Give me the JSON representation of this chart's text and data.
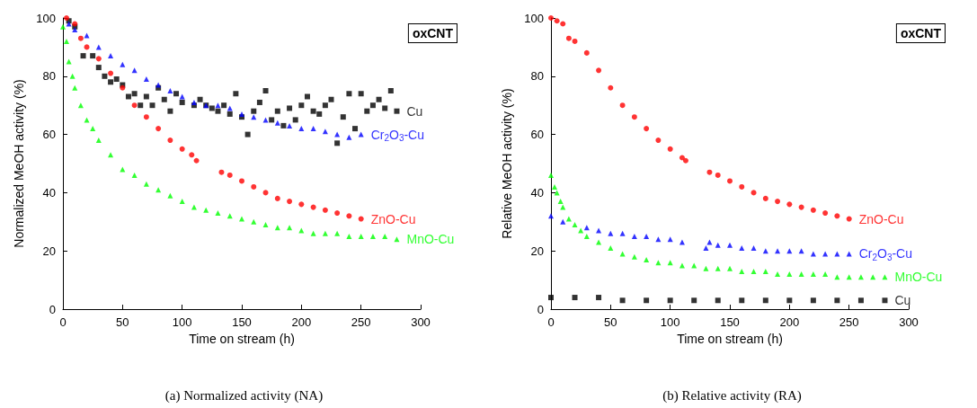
{
  "chart_data": [
    {
      "type": "scatter",
      "title": "(a) Normalized activity (NA)",
      "xlabel": "Time on stream (h)",
      "ylabel": "Normalized MeOH activity (%)",
      "annotations": [
        "oxCNT"
      ],
      "xlim": [
        0,
        300
      ],
      "xticks": [
        0,
        50,
        100,
        150,
        200,
        250,
        300
      ],
      "ylim": [
        0,
        100
      ],
      "yticks": [
        0,
        20,
        40,
        60,
        80,
        100
      ],
      "grid": false,
      "legend": false,
      "series": [
        {
          "name": "Cu",
          "color": "#000000",
          "marker": "square",
          "x": [
            5,
            10,
            17,
            25,
            30,
            35,
            40,
            45,
            50,
            55,
            60,
            65,
            70,
            75,
            80,
            85,
            90,
            95,
            100,
            110,
            115,
            120,
            125,
            130,
            135,
            140,
            145,
            150,
            155,
            160,
            165,
            170,
            175,
            180,
            185,
            190,
            195,
            200,
            205,
            210,
            215,
            220,
            225,
            230,
            235,
            240,
            245,
            250,
            255,
            260,
            265,
            270,
            275,
            280
          ],
          "values": [
            99,
            97,
            87,
            87,
            83,
            80,
            78,
            79,
            77,
            73,
            74,
            70,
            73,
            70,
            76,
            72,
            68,
            74,
            71,
            70,
            72,
            70,
            69,
            68,
            70,
            67,
            74,
            66,
            60,
            68,
            71,
            75,
            65,
            68,
            63,
            69,
            65,
            70,
            73,
            68,
            67,
            70,
            72,
            57,
            66,
            74,
            62,
            74,
            68,
            70,
            72,
            69,
            75,
            68
          ]
        },
        {
          "name": "Cr$_{2}$O$_{3}$-Cu",
          "color": "#0000ff",
          "marker": "triangle",
          "x": [
            5,
            10,
            20,
            30,
            40,
            50,
            60,
            70,
            80,
            90,
            100,
            110,
            120,
            130,
            140,
            150,
            160,
            170,
            180,
            190,
            200,
            210,
            220,
            230,
            240,
            250
          ],
          "values": [
            98,
            96,
            94,
            90,
            87,
            84,
            82,
            79,
            77,
            75,
            73,
            71,
            70,
            70,
            69,
            67,
            66,
            65,
            64,
            63,
            62,
            62,
            61,
            60,
            59,
            60
          ]
        },
        {
          "name": "ZnO-Cu",
          "color": "#ff0000",
          "marker": "circle",
          "x": [
            3,
            10,
            15,
            20,
            30,
            40,
            50,
            60,
            70,
            80,
            90,
            100,
            108,
            112,
            133,
            140,
            150,
            160,
            170,
            180,
            190,
            200,
            210,
            220,
            230,
            240,
            250
          ],
          "values": [
            100,
            98,
            93,
            90,
            86,
            81,
            76,
            70,
            66,
            62,
            58,
            55,
            53,
            51,
            47,
            46,
            44,
            42,
            40,
            38,
            37,
            36,
            35,
            34,
            33,
            32,
            31
          ]
        },
        {
          "name": "MnO-Cu",
          "color": "#00ff00",
          "marker": "triangle",
          "x": [
            0,
            3,
            5,
            8,
            10,
            15,
            20,
            25,
            30,
            40,
            50,
            60,
            70,
            80,
            90,
            100,
            110,
            120,
            130,
            140,
            150,
            160,
            170,
            180,
            190,
            200,
            210,
            220,
            230,
            240,
            250,
            260,
            270,
            280
          ],
          "values": [
            97,
            92,
            85,
            80,
            76,
            70,
            65,
            62,
            58,
            53,
            48,
            46,
            43,
            41,
            39,
            37,
            35,
            34,
            33,
            32,
            31,
            30,
            29,
            28,
            28,
            27,
            26,
            26,
            26,
            25,
            25,
            25,
            25,
            24
          ]
        }
      ]
    },
    {
      "type": "scatter",
      "title": "(b) Relative activity (RA)",
      "xlabel": "Time on stream (h)",
      "ylabel": "Relative MeOH activity (%)",
      "annotations": [
        "oxCNT"
      ],
      "xlim": [
        0,
        300
      ],
      "xticks": [
        0,
        50,
        100,
        150,
        200,
        250,
        300
      ],
      "ylim": [
        0,
        100
      ],
      "yticks": [
        0,
        20,
        40,
        60,
        80,
        100
      ],
      "grid": false,
      "legend": false,
      "series": [
        {
          "name": "Cu",
          "color": "#000000",
          "marker": "square",
          "x": [
            0,
            20,
            40,
            60,
            80,
            100,
            120,
            140,
            160,
            180,
            200,
            220,
            240,
            260,
            280
          ],
          "values": [
            4,
            4,
            4,
            3,
            3,
            3,
            3,
            3,
            3,
            3,
            3,
            3,
            3,
            3,
            3
          ]
        },
        {
          "name": "Cr$_{2}$O$_{3}$-Cu",
          "color": "#0000ff",
          "marker": "triangle",
          "x": [
            0,
            10,
            30,
            40,
            50,
            60,
            70,
            80,
            90,
            100,
            110,
            130,
            133,
            140,
            150,
            160,
            170,
            180,
            190,
            200,
            210,
            220,
            230,
            240,
            250
          ],
          "values": [
            32,
            30,
            28,
            27,
            26,
            26,
            25,
            25,
            24,
            24,
            23,
            21,
            23,
            22,
            22,
            21,
            21,
            20,
            20,
            20,
            20,
            19,
            19,
            19,
            19
          ]
        },
        {
          "name": "ZnO-Cu",
          "color": "#ff0000",
          "marker": "circle",
          "x": [
            0,
            5,
            10,
            15,
            20,
            30,
            40,
            50,
            60,
            70,
            80,
            90,
            100,
            110,
            113,
            133,
            140,
            150,
            160,
            170,
            180,
            190,
            200,
            210,
            220,
            230,
            240,
            250
          ],
          "values": [
            100,
            99,
            98,
            93,
            92,
            88,
            82,
            76,
            70,
            66,
            62,
            58,
            55,
            52,
            51,
            47,
            46,
            44,
            42,
            40,
            38,
            37,
            36,
            35,
            34,
            33,
            32,
            31
          ]
        },
        {
          "name": "MnO-Cu",
          "color": "#00ff00",
          "marker": "triangle",
          "x": [
            0,
            3,
            5,
            8,
            10,
            15,
            20,
            25,
            30,
            40,
            50,
            60,
            70,
            80,
            90,
            100,
            110,
            120,
            130,
            140,
            150,
            160,
            170,
            180,
            190,
            200,
            210,
            220,
            230,
            240,
            250,
            260,
            270,
            280
          ],
          "values": [
            46,
            42,
            40,
            37,
            35,
            31,
            29,
            27,
            25,
            23,
            21,
            19,
            18,
            17,
            16,
            16,
            15,
            15,
            14,
            14,
            14,
            13,
            13,
            13,
            12,
            12,
            12,
            12,
            12,
            11,
            11,
            11,
            11,
            11
          ]
        }
      ]
    }
  ]
}
